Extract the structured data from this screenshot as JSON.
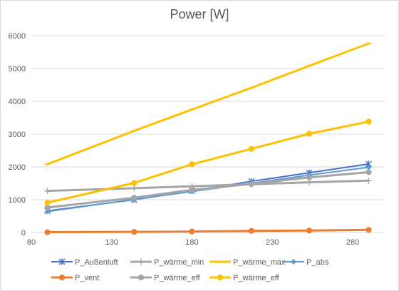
{
  "chart_data": {
    "type": "line",
    "title": "Power [W]",
    "xlabel": "",
    "ylabel": "",
    "xlim": [
      80,
      300
    ],
    "ylim": [
      0,
      6000
    ],
    "xticks": [
      80,
      130,
      180,
      230,
      280
    ],
    "yticks": [
      0,
      1000,
      2000,
      3000,
      4000,
      5000,
      6000
    ],
    "grid": "horizontal",
    "legend_position": "bottom",
    "series": [
      {
        "name": "P_Außenluft",
        "color": "#4472C4",
        "marker": "star",
        "width": 2,
        "x": [
          90,
          144,
          180,
          217,
          253,
          290
        ],
        "y": [
          660,
          1000,
          1270,
          1560,
          1820,
          2090
        ]
      },
      {
        "name": "P_wärme_min",
        "color": "#A5A5A5",
        "marker": "plus",
        "width": 3,
        "x": [
          90,
          144,
          180,
          217,
          253,
          290
        ],
        "y": [
          1270,
          1350,
          1410,
          1470,
          1530,
          1580
        ]
      },
      {
        "name": "P_wärme_max",
        "color": "#FFC000",
        "marker": "dash",
        "width": 3,
        "x": [
          90,
          144,
          180,
          217,
          253,
          290
        ],
        "y": [
          2080,
          3100,
          3750,
          4410,
          5080,
          5760
        ]
      },
      {
        "name": "P_abs",
        "color": "#5B9BD5",
        "marker": "diamond",
        "width": 2,
        "x": [
          90,
          144,
          180,
          217,
          253,
          290
        ],
        "y": [
          640,
          1010,
          1250,
          1500,
          1750,
          1990
        ]
      },
      {
        "name": "P_vent",
        "color": "#ED7D31",
        "marker": "circle",
        "width": 3,
        "x": [
          90,
          144,
          180,
          217,
          253,
          290
        ],
        "y": [
          10,
          20,
          30,
          50,
          60,
          80
        ]
      },
      {
        "name": "P_wärme_eff",
        "color": "#A5A5A5",
        "marker": "circle",
        "width": 3,
        "x": [
          90,
          144,
          180,
          217,
          253,
          290
        ],
        "y": [
          760,
          1060,
          1300,
          1480,
          1680,
          1840
        ]
      },
      {
        "name": "P_wärme_eff",
        "color": "#FFC000",
        "marker": "circle",
        "width": 3,
        "x": [
          90,
          144,
          180,
          217,
          253,
          290
        ],
        "y": [
          910,
          1510,
          2080,
          2550,
          3010,
          3380
        ]
      }
    ]
  }
}
